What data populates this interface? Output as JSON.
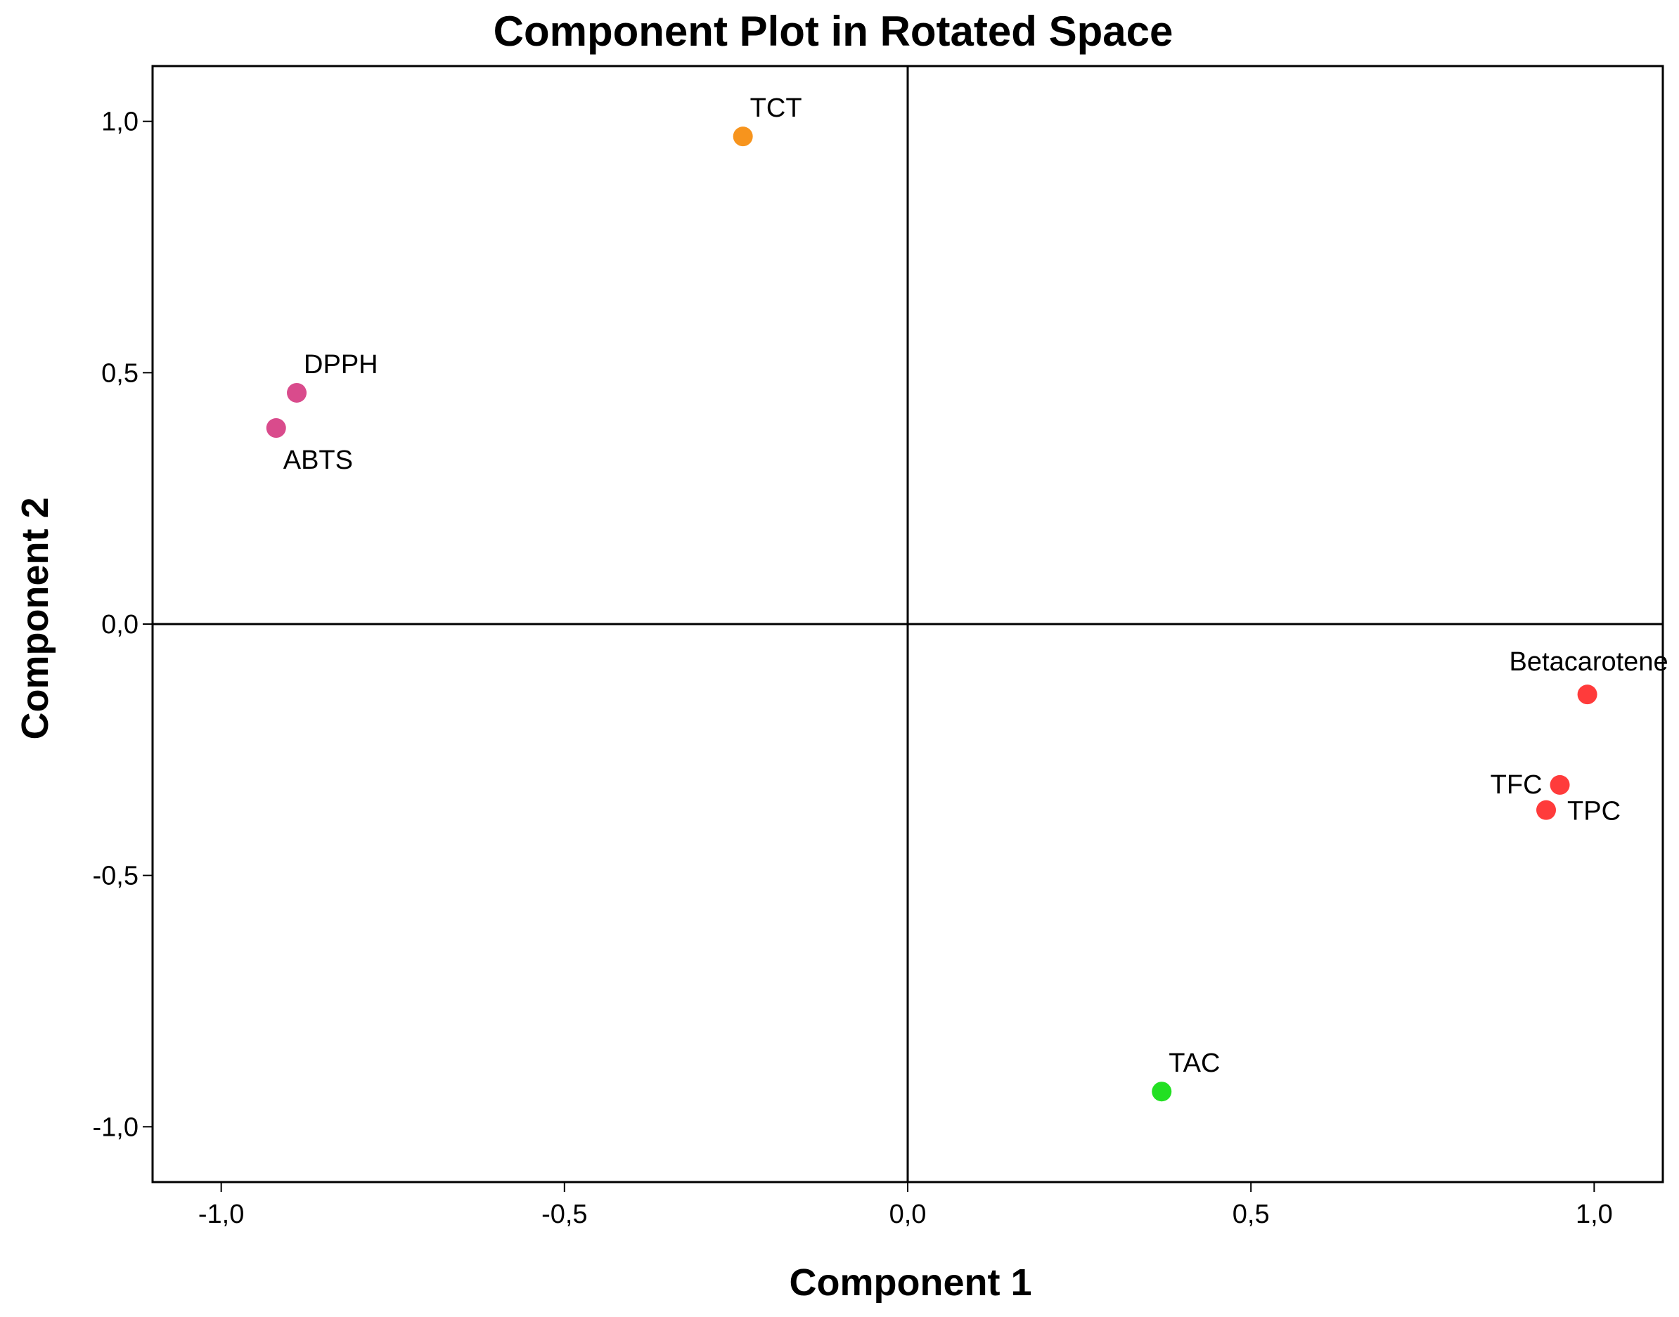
{
  "chart_data": {
    "type": "scatter",
    "title": "Component Plot in Rotated Space",
    "xlabel": "Component 1",
    "ylabel": "Component 2",
    "xlim": [
      -1.1,
      1.1
    ],
    "ylim": [
      -1.11,
      1.11
    ],
    "xticks": [
      {
        "value": -1.0,
        "label": "-1,0"
      },
      {
        "value": -0.5,
        "label": "-0,5"
      },
      {
        "value": 0.0,
        "label": "0,0"
      },
      {
        "value": 0.5,
        "label": "0,5"
      },
      {
        "value": 1.0,
        "label": "1,0"
      }
    ],
    "yticks": [
      {
        "value": 1.0,
        "label": "1,0"
      },
      {
        "value": 0.5,
        "label": "0,5"
      },
      {
        "value": 0.0,
        "label": "0,0"
      },
      {
        "value": -0.5,
        "label": "-0,5"
      },
      {
        "value": -1.0,
        "label": "-1,0"
      }
    ],
    "reference_lines": {
      "x": 0,
      "y": 0
    },
    "grid": false,
    "points": [
      {
        "label": "TCT",
        "x": -0.24,
        "y": 0.97,
        "color": "#f7941d",
        "label_pos": "above-right"
      },
      {
        "label": "DPPH",
        "x": -0.89,
        "y": 0.46,
        "color": "#d94b8c",
        "label_pos": "above-right"
      },
      {
        "label": "ABTS",
        "x": -0.92,
        "y": 0.39,
        "color": "#d94b8c",
        "label_pos": "below-right"
      },
      {
        "label": "Betacarotene",
        "x": 0.99,
        "y": -0.14,
        "color": "#ff3b3b",
        "label_pos": "above-left"
      },
      {
        "label": "TFC",
        "x": 0.95,
        "y": -0.32,
        "color": "#ff3b3b",
        "label_pos": "left"
      },
      {
        "label": "TPC",
        "x": 0.93,
        "y": -0.37,
        "color": "#ff3b3b",
        "label_pos": "right"
      },
      {
        "label": "TAC",
        "x": 0.37,
        "y": -0.93,
        "color": "#22e022",
        "label_pos": "above-right"
      }
    ]
  }
}
